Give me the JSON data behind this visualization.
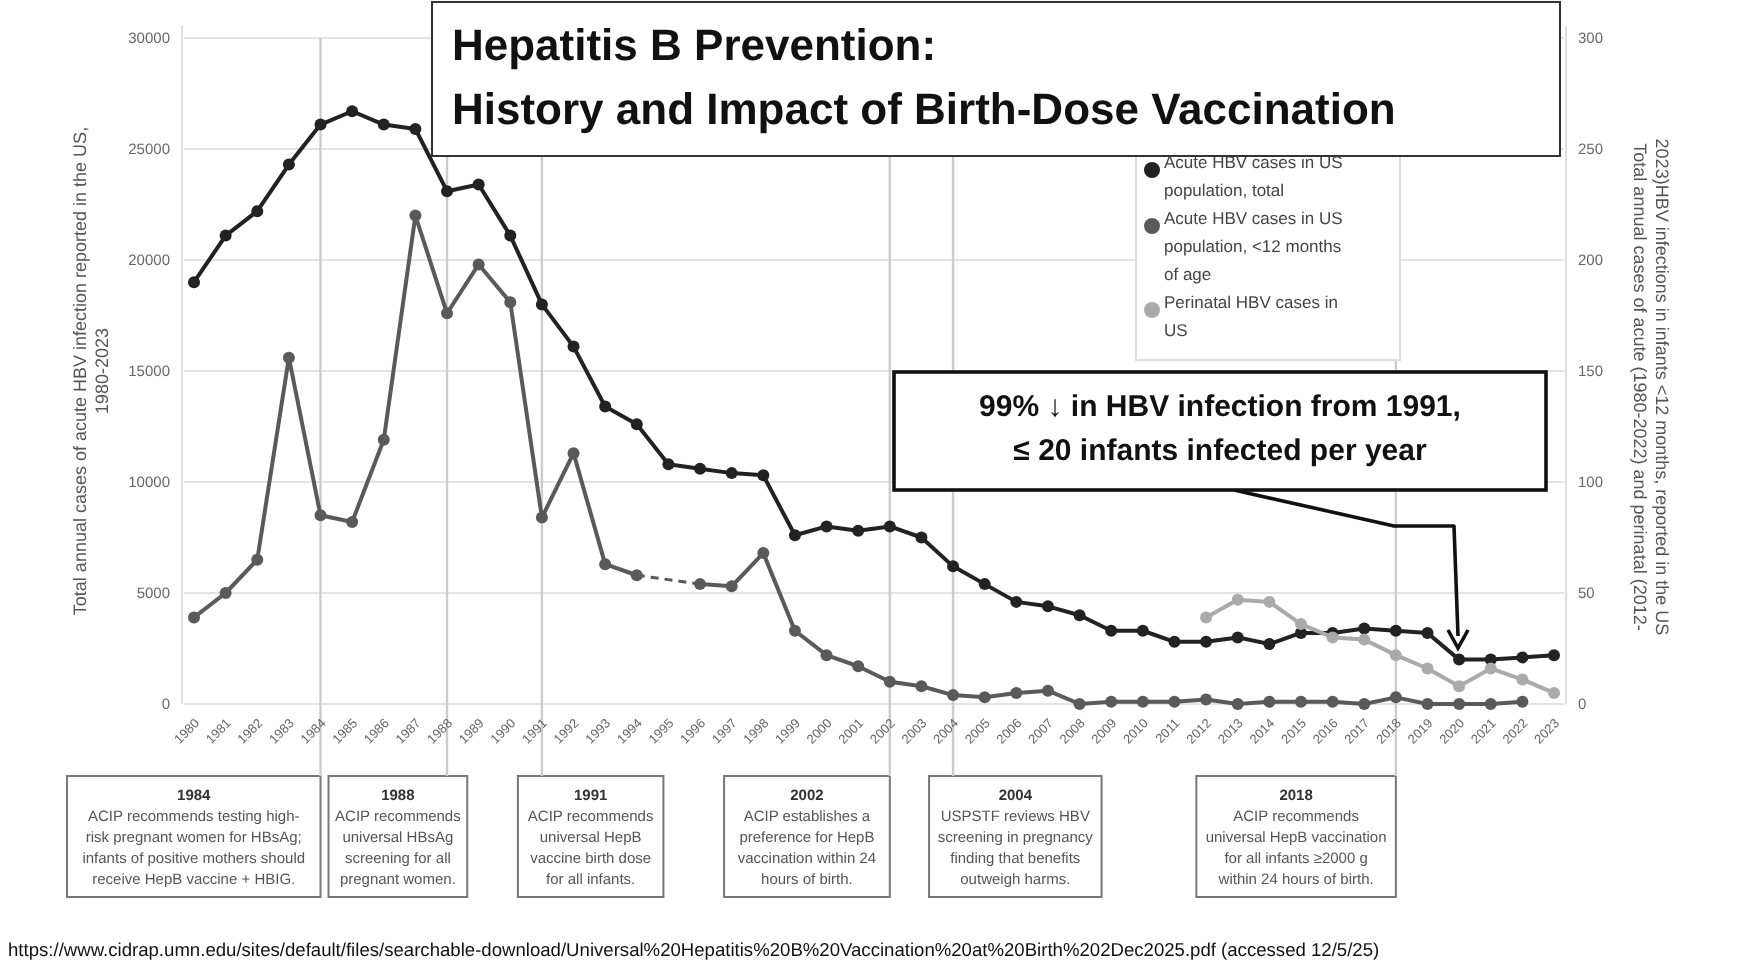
{
  "chart_data": {
    "type": "line",
    "title": "Hepatitis B Prevention:\nHistory and Impact of Birth-Dose Vaccination",
    "ylabel": "Total annual cases of acute HBV infection reported in the US,\n1980-2023",
    "y2label": "Total annual cases of acute (1980-2022) and perinatal (2012-\n2023)HBV infections in infants <12 months, reported in the US",
    "categories": [
      "1980",
      "1981",
      "1982",
      "1983",
      "1984",
      "1985",
      "1986",
      "1987",
      "1988",
      "1989",
      "1990",
      "1991",
      "1992",
      "1993",
      "1994",
      "1995",
      "1996",
      "1997",
      "1998",
      "1999",
      "2000",
      "2001",
      "2002",
      "2003",
      "2004",
      "2005",
      "2006",
      "2007",
      "2008",
      "2009",
      "2010",
      "2011",
      "2012",
      "2013",
      "2014",
      "2015",
      "2016",
      "2017",
      "2018",
      "2019",
      "2020",
      "2021",
      "2022",
      "2023"
    ],
    "series": [
      {
        "name": "Acute HBV cases in US population, total",
        "color": "#222222",
        "values": [
          19000,
          21100,
          22200,
          24300,
          26100,
          26700,
          26100,
          25900,
          23100,
          23400,
          21100,
          18000,
          16100,
          13400,
          12600,
          10800,
          10600,
          10400,
          10300,
          7600,
          8000,
          7800,
          8000,
          7500,
          6200,
          5400,
          4600,
          4400,
          4000,
          3300,
          3300,
          2800,
          2800,
          3000,
          2700,
          3200,
          3200,
          3400,
          3300,
          3200,
          2000,
          2000,
          2100,
          2200
        ]
      },
      {
        "name": "Acute HBV cases in US population, <12 months of age",
        "color": "#5a5a5a",
        "axis": "y2",
        "values": [
          39,
          50,
          65,
          156,
          85,
          82,
          119,
          220,
          176,
          198,
          181,
          84,
          113,
          63,
          58,
          null,
          54,
          53,
          68,
          33,
          22,
          17,
          10,
          8,
          4,
          3,
          5,
          6,
          0,
          1,
          1,
          1,
          2,
          0,
          1,
          1,
          1,
          0,
          3,
          0,
          0,
          0,
          1,
          null
        ]
      },
      {
        "name": "Perinatal HBV cases in US",
        "color": "#aaaaaa",
        "axis": "y2",
        "values": [
          null,
          null,
          null,
          null,
          null,
          null,
          null,
          null,
          null,
          null,
          null,
          null,
          null,
          null,
          null,
          null,
          null,
          null,
          null,
          null,
          null,
          null,
          null,
          null,
          null,
          null,
          null,
          null,
          null,
          null,
          null,
          null,
          39,
          47,
          46,
          36,
          30,
          29,
          22,
          16,
          8,
          16,
          11,
          5
        ]
      }
    ],
    "ylim": [
      0,
      30000
    ],
    "yticks": [
      0,
      5000,
      10000,
      15000,
      20000,
      25000,
      30000
    ],
    "y2lim": [
      0,
      300
    ],
    "y2ticks": [
      0,
      50,
      100,
      150,
      200,
      250,
      300
    ],
    "grid": "y",
    "legend": "top right",
    "marker": "circle",
    "line_style": "solid",
    "ref_lines": [
      {
        "axis": "x",
        "value": "1984",
        "color": "#cccccc",
        "label": "1984\nACIP recommends testing high-\nrisk pregnant women for HBsAg;\ninfants of positive mothers should\nreceive HepB vaccine + HBIG."
      },
      {
        "axis": "x",
        "value": "1988",
        "color": "#cccccc",
        "label": "1988\nACIP recommends\nuniversal HBsAg\nscreening for all\npregnant women."
      },
      {
        "axis": "x",
        "value": "1991",
        "color": "#cccccc",
        "label": "1991\nACIP recommends\nuniversal HepB\nvaccine birth dose\nfor all infants."
      },
      {
        "axis": "x",
        "value": "2002",
        "color": "#cccccc",
        "label": "2002\nACIP establishes a\npreference for HepB\nvaccination within 24\nhours of birth."
      },
      {
        "axis": "x",
        "value": "2004",
        "color": "#cccccc",
        "label": "2004\nUSPSTF reviews HBV\nscreening in pregnancy\nfinding that benefits\noutweigh harms."
      },
      {
        "axis": "x",
        "value": "2018",
        "color": "#cccccc",
        "label": "2018\nACIP recommends\nuniversal HepB vaccination\nfor all infants ≥2000 g\nwithin 24 hours of birth."
      }
    ],
    "annotations": [
      "99% ↓ in HBV infection from 1991,\n≤ 20 infants infected per year",
      "https://www.cidrap.umn.edu/sites/default/files/searchable-download/Universal%20Hepatitis%20B%20Vaccination%20at%20Birth%202Dec2025.pdf (accessed 12/5/25)"
    ]
  }
}
